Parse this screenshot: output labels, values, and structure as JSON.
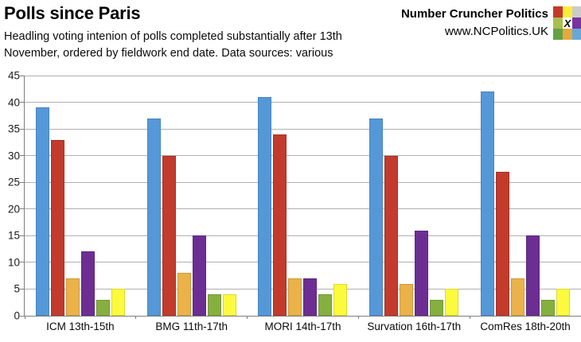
{
  "header": {
    "title": "Polls since Paris",
    "subtitle_line1": "Headling voting intenion of polls completed substantially after 13th",
    "subtitle_line2": "November, ordered by fieldwork end date. Data sources: various"
  },
  "brand": {
    "name": "Number Cruncher Politics",
    "url": "www.NCPolitics.UK"
  },
  "logo": {
    "x_label": "X",
    "cells": [
      [
        "#c5382c",
        "#f9ee37",
        "#cbcbcb"
      ],
      [
        "#a9bf4c",
        "x",
        "#7733a0"
      ],
      [
        "#63a146",
        "#e5a93e",
        "#68a8d8"
      ]
    ]
  },
  "chart_data": {
    "type": "bar",
    "title": "Polls since Paris",
    "categories": [
      "ICM 13th-15th",
      "BMG 11th-17th",
      "MORI 14th-17th",
      "Survation 16th-17th",
      "ComRes 18th-20th"
    ],
    "series": [
      {
        "name": "blue",
        "color": "#5598d8",
        "values": [
          39,
          37,
          41,
          37,
          42
        ]
      },
      {
        "name": "red",
        "color": "#c23b2d",
        "values": [
          33,
          30,
          34,
          30,
          27
        ]
      },
      {
        "name": "orange",
        "color": "#eab249",
        "values": [
          7,
          8,
          7,
          6,
          7
        ]
      },
      {
        "name": "purple",
        "color": "#6c2e93",
        "values": [
          12,
          15,
          7,
          16,
          15
        ]
      },
      {
        "name": "green",
        "color": "#85b03f",
        "values": [
          3,
          4,
          4,
          3,
          3
        ]
      },
      {
        "name": "yellow",
        "color": "#fcfa3d",
        "values": [
          5,
          4,
          6,
          5,
          5
        ]
      }
    ],
    "xlabel": "",
    "ylabel": "",
    "ylim": [
      0,
      45
    ],
    "yticks": [
      0,
      5,
      10,
      15,
      20,
      25,
      30,
      35,
      40,
      45
    ],
    "grid": "horizontal",
    "legend": "none"
  }
}
